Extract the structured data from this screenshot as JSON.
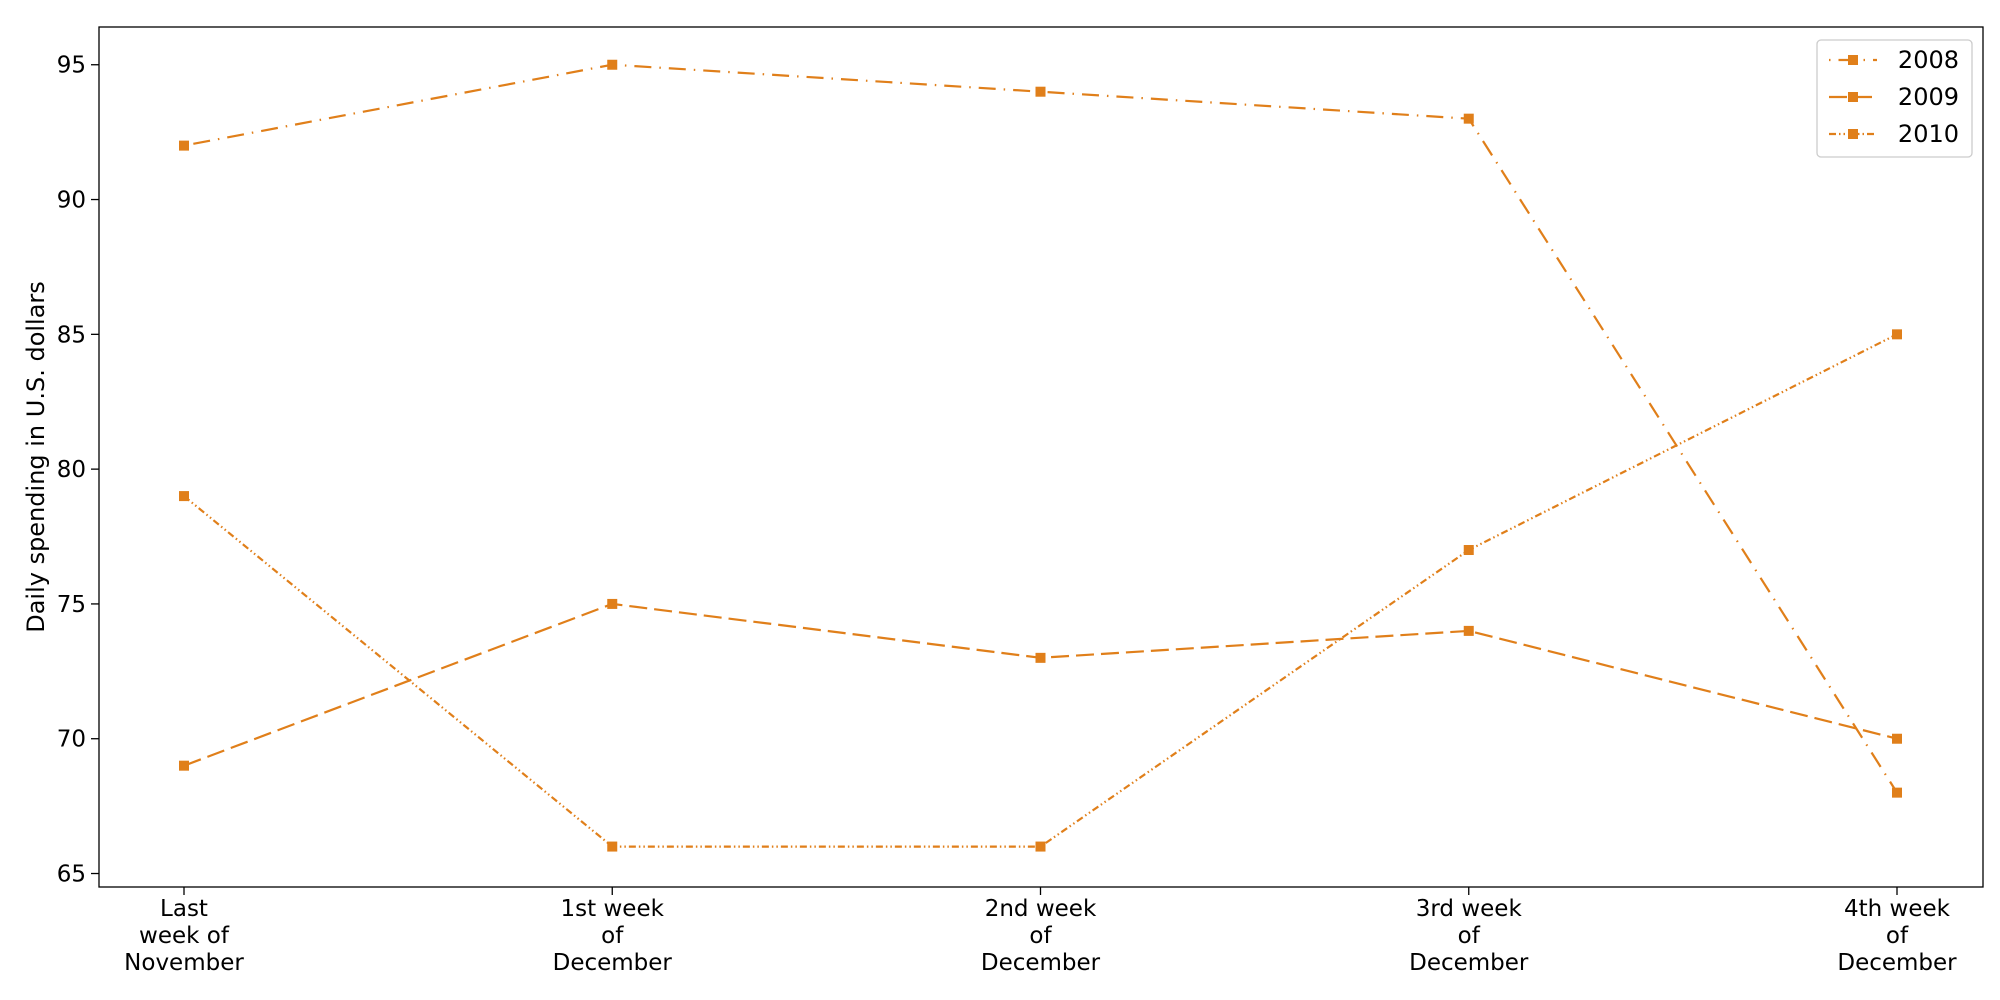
{
  "chart_data": {
    "type": "line",
    "title": "",
    "xlabel": "",
    "ylabel": "Daily spending in U.S. dollars",
    "categories": [
      [
        "Last",
        "week of",
        "November"
      ],
      [
        "1st week",
        "of",
        "December"
      ],
      [
        "2nd week",
        "of",
        "December"
      ],
      [
        "3rd week",
        "of",
        "December"
      ],
      [
        "4th week",
        "of",
        "December"
      ]
    ],
    "ylim": [
      64.5,
      96.4
    ],
    "yticks": [
      65,
      70,
      75,
      80,
      85,
      90,
      95
    ],
    "grid": false,
    "legend_position": "top-right",
    "color": "#e07f1a",
    "series": [
      {
        "name": "2008",
        "values": [
          92,
          95,
          94,
          93,
          68
        ],
        "dash": "dashdot-sparse"
      },
      {
        "name": "2009",
        "values": [
          69,
          75,
          73,
          74,
          70
        ],
        "dash": "dashed"
      },
      {
        "name": "2010",
        "values": [
          79,
          66,
          66,
          77,
          85
        ],
        "dash": "dashdotdot"
      }
    ]
  }
}
